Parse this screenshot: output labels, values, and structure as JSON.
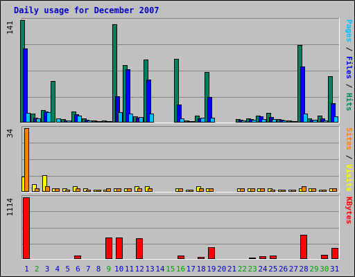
{
  "chart_data": {
    "type": "bar",
    "title": "Daily usage for December 2007",
    "categories": [
      "1",
      "2",
      "3",
      "4",
      "5",
      "6",
      "7",
      "8",
      "9",
      "10",
      "11",
      "12",
      "13",
      "14",
      "15",
      "16",
      "17",
      "18",
      "19",
      "20",
      "21",
      "22",
      "23",
      "24",
      "25",
      "26",
      "27",
      "28",
      "29",
      "30",
      "31"
    ],
    "weekend_days": [
      "2",
      "9",
      "15",
      "16",
      "22",
      "23",
      "29",
      "30"
    ],
    "panels": [
      {
        "id": "top",
        "ymax_label": "141",
        "ylim": [
          0,
          141
        ],
        "series": [
          {
            "name": "Hits",
            "color": "#00805c",
            "values": [
              141,
              12,
              17,
              57,
              5,
              15,
              6,
              3,
              3,
              135,
              79,
              9,
              87,
              0,
              0,
              88,
              3,
              10,
              70,
              0,
              0,
              5,
              6,
              10,
              13,
              5,
              3,
              107,
              6,
              10,
              64
            ]
          },
          {
            "name": "Files",
            "color": "#0000f0",
            "values": [
              102,
              7,
              15,
              0,
              3,
              11,
              4,
              2,
              2,
              36,
              73,
              7,
              59,
              0,
              0,
              25,
              2,
              6,
              35,
              0,
              0,
              4,
              5,
              9,
              8,
              4,
              2,
              77,
              4,
              6,
              27
            ]
          },
          {
            "name": "Pages",
            "color": "#00c0ff",
            "values": [
              13,
              6,
              14,
              6,
              3,
              10,
              3,
              2,
              2,
              14,
              12,
              8,
              12,
              0,
              0,
              6,
              2,
              7,
              7,
              0,
              0,
              3,
              4,
              5,
              5,
              3,
              2,
              12,
              4,
              3,
              9
            ]
          }
        ]
      },
      {
        "id": "middle",
        "ymax_label": "34",
        "ylim": [
          0,
          34
        ],
        "series": [
          {
            "name": "Visits",
            "color": "#ffff00",
            "values": [
              8,
              4,
              9,
              2,
              2,
              3,
              2,
              1,
              1,
              2,
              2,
              3,
              3,
              0,
              0,
              2,
              1,
              3,
              2,
              0,
              0,
              2,
              2,
              2,
              2,
              1,
              1,
              2,
              2,
              1,
              2
            ]
          },
          {
            "name": "Sites",
            "color": "#ff8000",
            "values": [
              34,
              2,
              3,
              2,
              1,
              2,
              1,
              1,
              2,
              2,
              2,
              2,
              2,
              0,
              0,
              2,
              1,
              2,
              2,
              0,
              0,
              2,
              2,
              2,
              1,
              1,
              1,
              3,
              2,
              1,
              2
            ]
          }
        ]
      },
      {
        "id": "bottom",
        "ymax_label": "1114",
        "ylim": [
          0,
          1114
        ],
        "series": [
          {
            "name": "KBytes",
            "color": "#ff0000",
            "values": [
              1114,
              12,
              12,
              12,
              12,
              60,
              12,
              12,
              390,
              390,
              12,
              370,
              0,
              0,
              0,
              60,
              12,
              40,
              210,
              0,
              0,
              15,
              25,
              45,
              65,
              12,
              12,
              440,
              15,
              80,
              200
            ]
          }
        ]
      }
    ],
    "right_labels": {
      "top": [
        {
          "text": "Pages",
          "color": "#00c0ff"
        },
        {
          "text": " / ",
          "color": "#000000"
        },
        {
          "text": "Files",
          "color": "#0000f0"
        },
        {
          "text": " / ",
          "color": "#000000"
        },
        {
          "text": "Hits",
          "color": "#00805c"
        }
      ],
      "middle": [
        {
          "text": "Sites",
          "color": "#ff8000"
        },
        {
          "text": " / ",
          "color": "#000000"
        },
        {
          "text": "Visits",
          "color": "#ffff00"
        }
      ],
      "bottom": [
        {
          "text": "KBytes",
          "color": "#ff0000"
        }
      ]
    },
    "grid": true,
    "colors": {
      "panel_bg": "#c0c0c0",
      "border_dark": "#808080",
      "border_light": "#ffffff",
      "title": "#0000c0",
      "weekday_label": "#0000c0",
      "weekend_label": "#00a000"
    }
  }
}
